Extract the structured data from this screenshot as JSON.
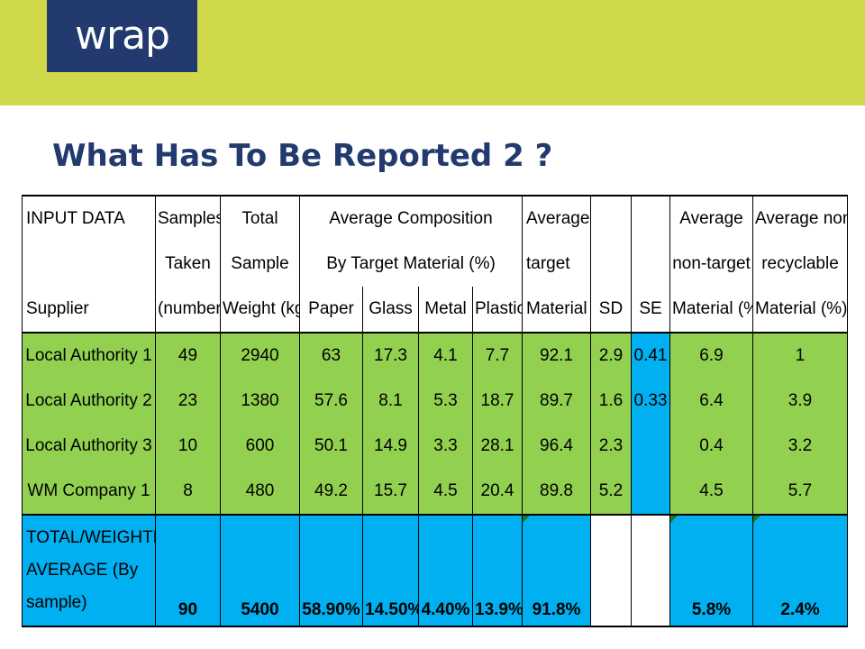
{
  "logo": "wrap",
  "title": "What Has To Be Reported 2 ?",
  "header": {
    "r1": {
      "c0": "INPUT DATA",
      "samples": "Samples",
      "total": "Total",
      "avgcomp": "Average Composition",
      "avgtarget": "Average",
      "avgnontarget": "Average",
      "avgnonrec": "Average non"
    },
    "r2": {
      "samples": "Taken",
      "total": "Sample",
      "avgcomp": "By Target Material (%)",
      "avgtarget": "target",
      "avgnontarget": "non-target",
      "avgnonrec": "recyclable"
    },
    "r3": {
      "c0": "Supplier",
      "samples": "(number)",
      "total": "Weight (kg)",
      "paper": "Paper",
      "glass": "Glass",
      "metal": "Metal",
      "plastic": "Plastic",
      "avgtarget": "Material %",
      "sd": "SD",
      "se": "SE",
      "avgnontarget": "Material (%)",
      "avgnonrec": "Material (%)"
    }
  },
  "rows": [
    {
      "supplier": "Local Authority 1",
      "samples": "49",
      "weight": "2940",
      "paper": "63",
      "glass": "17.3",
      "metal": "4.1",
      "plastic": "7.7",
      "target": "92.1",
      "sd": "2.9",
      "se": "0.41",
      "nontarget": "6.9",
      "nonrec": "1"
    },
    {
      "supplier": "Local Authority 2",
      "samples": "23",
      "weight": "1380",
      "paper": "57.6",
      "glass": "8.1",
      "metal": "5.3",
      "plastic": "18.7",
      "target": "89.7",
      "sd": "1.6",
      "se": "0.33",
      "nontarget": "6.4",
      "nonrec": "3.9"
    },
    {
      "supplier": "Local Authority 3",
      "samples": "10",
      "weight": "600",
      "paper": "50.1",
      "glass": "14.9",
      "metal": "3.3",
      "plastic": "28.1",
      "target": "96.4",
      "sd": "2.3",
      "se": "",
      "nontarget": "0.4",
      "nonrec": "3.2"
    },
    {
      "supplier": "WM Company 1",
      "samples": "8",
      "weight": "480",
      "paper": "49.2",
      "glass": "15.7",
      "metal": "4.5",
      "plastic": "20.4",
      "target": "89.8",
      "sd": "5.2",
      "se": "",
      "nontarget": "4.5",
      "nonrec": "5.7"
    }
  ],
  "total": {
    "label": "TOTAL/WEIGHTED AVERAGE (By sample)",
    "samples": "90",
    "weight": "5400",
    "paper": "58.90%",
    "glass": "14.50%",
    "metal": "4.40%",
    "plastic": "13.9%",
    "target": "91.8%",
    "nontarget": "5.8%",
    "nonrec": "2.4%"
  },
  "colors": {
    "band": "#d0d94a",
    "navy": "#233a6e",
    "green": "#92d050",
    "blue": "#00b0f0"
  }
}
